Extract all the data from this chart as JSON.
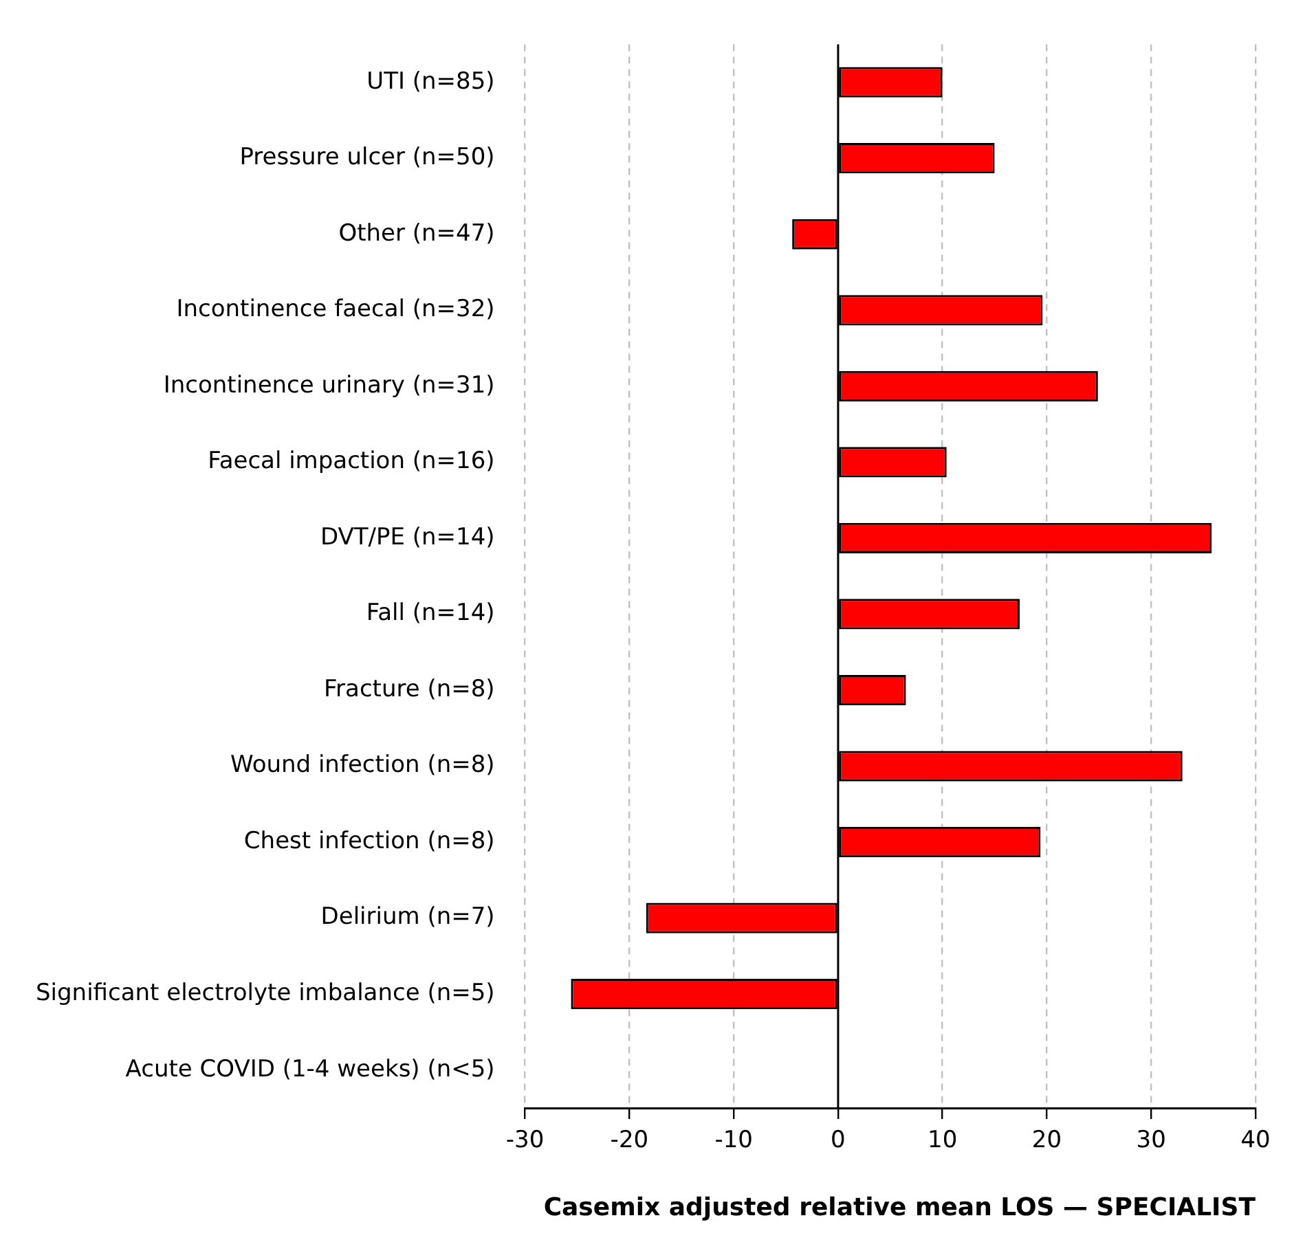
{
  "chart_data": {
    "type": "bar",
    "orientation": "horizontal",
    "xlabel": "Casemix adjusted relative mean LOS — SPECIALIST",
    "categories": [
      "UTI (n=85)",
      "Pressure ulcer (n=50)",
      "Other (n=47)",
      "Incontinence faecal (n=32)",
      "Incontinence urinary (n=31)",
      "Faecal impaction (n=16)",
      "DVT/PE (n=14)",
      "Fall (n=14)",
      "Fracture (n=8)",
      "Wound infection (n=8)",
      "Chest infection (n=8)",
      "Delirium (n=7)",
      "Significant electrolyte imbalance (n=5)",
      "Acute COVID (1-4 weeks) (n<5)"
    ],
    "values": [
      10,
      15,
      -4.4,
      19.6,
      24.9,
      10.4,
      35.8,
      17.4,
      6.5,
      33,
      19.4,
      -18.4,
      -25.6,
      null
    ],
    "color": "#ff0000",
    "xlim": [
      -30,
      40
    ],
    "xticks": [
      -30,
      -20,
      -10,
      0,
      10,
      20,
      30,
      40
    ],
    "grid": "x",
    "legend": false
  }
}
